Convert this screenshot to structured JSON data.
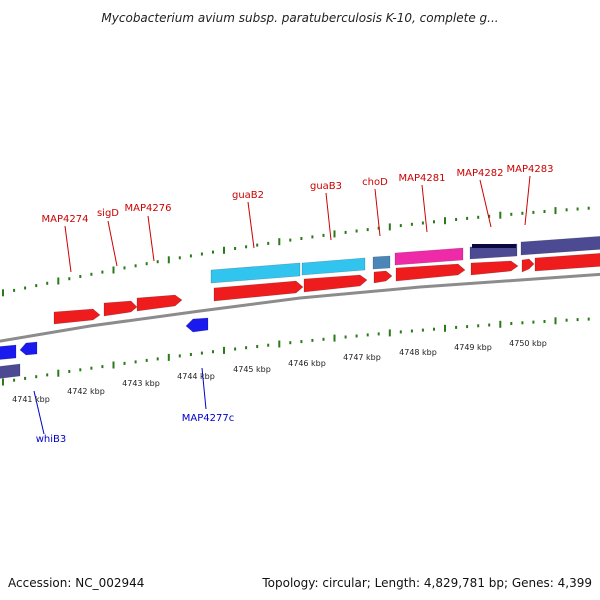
{
  "title": "Mycobacterium avium subsp. paratuberculosis K-10, complete g...",
  "accession_text": "Accession: NC_002944",
  "topology_text": "Topology: circular; Length: 4,829,781 bp; Genes: 4,399",
  "colors": {
    "forward_cds": "#ee1c1c",
    "reverse_cds": "#1a1aee",
    "tick": "#2a7a1a",
    "backbone": "#8c8c8c",
    "upper_label": "#cc0000",
    "lower_label": "#0000cc",
    "cyan_feature": "#30c4ee",
    "magenta_feature": "#ee2aa8",
    "steelblue_feature": "#4a86b8",
    "slate_feature": "#4b4a92"
  },
  "axis_labels": [
    "4741 kbp",
    "4742 kbp",
    "4743 kbp",
    "4744 kbp",
    "4745 kbp",
    "4746 kbp",
    "4747 kbp",
    "4748 kbp",
    "4749 kbp",
    "4750 kbp"
  ],
  "upper_gene_labels": [
    "MAP4274",
    "sigD",
    "MAP4276",
    "guaB2",
    "guaB3",
    "choD",
    "MAP4281",
    "MAP4282",
    "MAP4283"
  ],
  "lower_gene_labels": [
    "whiB3",
    "MAP4277c"
  ]
}
